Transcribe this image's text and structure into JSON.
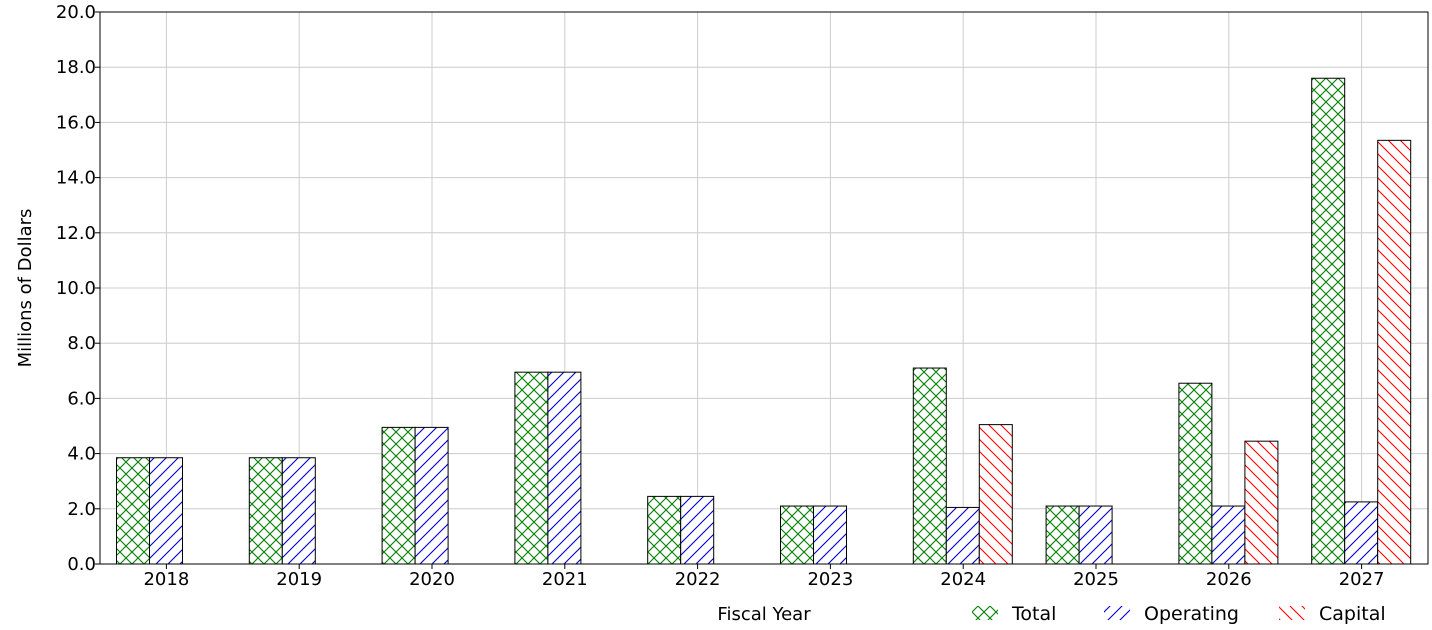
{
  "chart_data": {
    "type": "bar",
    "categories": [
      "2018",
      "2019",
      "2020",
      "2021",
      "2022",
      "2023",
      "2024",
      "2025",
      "2026",
      "2027"
    ],
    "series": [
      {
        "name": "Total",
        "color": "#008000",
        "pattern": "crosshatch",
        "values": [
          3.85,
          3.85,
          4.95,
          6.95,
          2.45,
          2.1,
          7.1,
          2.1,
          6.55,
          17.6
        ]
      },
      {
        "name": "Operating",
        "color": "#0000cc",
        "pattern": "forward-diagonal",
        "values": [
          3.85,
          3.85,
          4.95,
          6.95,
          2.45,
          2.1,
          2.05,
          2.1,
          2.1,
          2.25
        ]
      },
      {
        "name": "Capital",
        "color": "#ff0000",
        "pattern": "back-diagonal",
        "values": [
          null,
          null,
          null,
          null,
          null,
          null,
          5.05,
          null,
          4.45,
          15.35
        ]
      }
    ],
    "title": "",
    "xlabel": "Fiscal Year",
    "ylabel": "Millions of Dollars",
    "ylim": [
      0,
      20
    ],
    "yticks": [
      "0.0",
      "2.0",
      "4.0",
      "6.0",
      "8.0",
      "10.0",
      "12.0",
      "14.0",
      "16.0",
      "18.0",
      "20.0"
    ],
    "grid": true,
    "legend_position": "bottom-right"
  }
}
